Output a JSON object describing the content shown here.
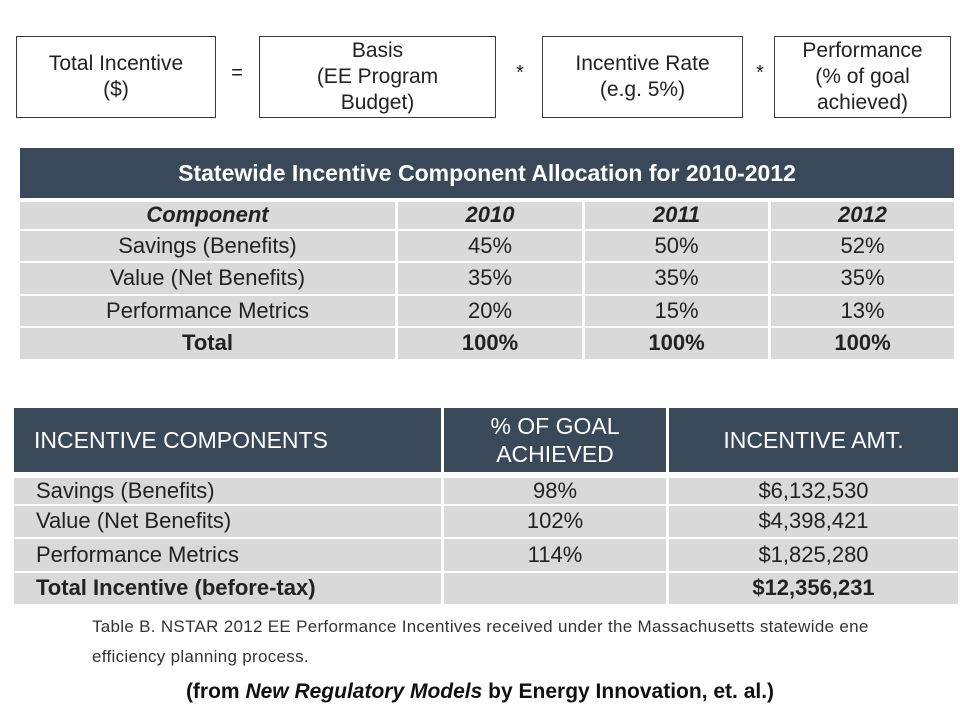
{
  "formula": {
    "box1": [
      "Total Incentive",
      "($)"
    ],
    "op1": "=",
    "box2": [
      "Basis",
      "(EE Program",
      "Budget)"
    ],
    "op2": "*",
    "box3": [
      "Incentive Rate",
      "(e.g. 5%)"
    ],
    "op3": "*",
    "box4": [
      "Performance",
      "(% of goal",
      "achieved)"
    ]
  },
  "table1": {
    "title": "Statewide Incentive Component Allocation for 2010-2012",
    "headers": [
      "Component",
      "2010",
      "2011",
      "2012"
    ],
    "rows": [
      [
        "Savings (Benefits)",
        "45%",
        "50%",
        "52%"
      ],
      [
        "Value (Net Benefits)",
        "35%",
        "35%",
        "35%"
      ],
      [
        "Performance Metrics",
        "20%",
        "15%",
        "13%"
      ]
    ],
    "total": [
      "Total",
      "100%",
      "100%",
      "100%"
    ]
  },
  "table2": {
    "headers": [
      "INCENTIVE COMPONENTS",
      "% OF GOAL ACHIEVED",
      "INCENTIVE AMT."
    ],
    "header1_lines": [
      "% OF GOAL",
      "ACHIEVED"
    ],
    "rows": [
      [
        "Savings (Benefits)",
        "98%",
        "$6,132,530"
      ],
      [
        "Value (Net Benefits)",
        "102%",
        "$4,398,421"
      ],
      [
        "Performance Metrics",
        "114%",
        "$1,825,280"
      ]
    ],
    "total": [
      "Total Incentive (before-tax)",
      "",
      "$12,356,231"
    ]
  },
  "caption": {
    "line1": "Table B. NSTAR 2012 EE Performance Incentives received under the Massachusetts statewide ene",
    "line2": "efficiency planning process."
  },
  "source": {
    "prefix": "(from ",
    "title": "New Regulatory Models",
    "suffix": " by Energy Innovation, et. al.)"
  },
  "colors": {
    "header_bg": "#3a4959",
    "cell_bg": "#d9d9d9"
  }
}
